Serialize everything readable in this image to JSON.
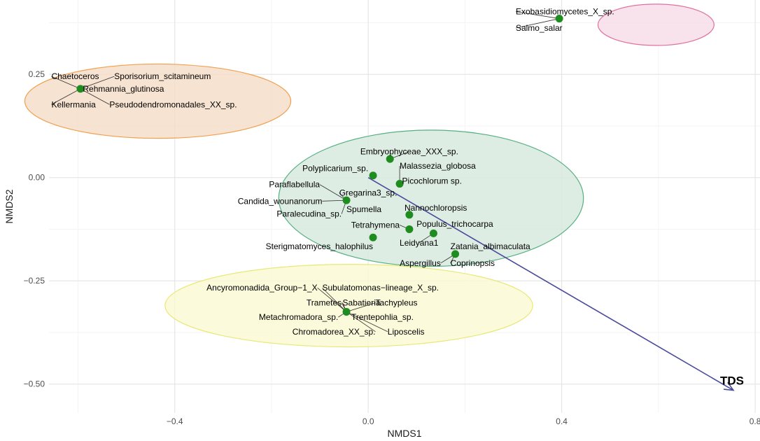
{
  "chart_data": {
    "type": "scatter",
    "title": "",
    "xlabel": "NMDS1",
    "ylabel": "NMDS2",
    "xlim": [
      -0.66,
      0.81
    ],
    "ylim": [
      -0.57,
      0.43
    ],
    "x_ticks": [
      -0.4,
      0.0,
      0.4,
      0.8
    ],
    "x_tick_labels": [
      "−0.4",
      "0.0",
      "0.4",
      "0.8"
    ],
    "y_ticks": [
      -0.5,
      -0.25,
      0.0,
      0.25
    ],
    "y_tick_labels": [
      "−0.50",
      "−0.25",
      "0.00",
      "0.25"
    ],
    "grid": true,
    "point_color": "#1e8c1e",
    "arrow_color": "#4b4b9c",
    "clusters": [
      {
        "center": [
          -0.435,
          0.185
        ],
        "rx": 0.275,
        "ry": 0.09,
        "fill": "#f5dcc6",
        "stroke": "#f0a050"
      },
      {
        "center": [
          0.595,
          0.37
        ],
        "rx": 0.12,
        "ry": 0.05,
        "fill": "#f6dce8",
        "stroke": "#e070a0"
      },
      {
        "center": [
          0.13,
          -0.05
        ],
        "rx": 0.315,
        "ry": 0.165,
        "fill": "#d6e8dc",
        "stroke": "#55b080"
      },
      {
        "center": [
          -0.04,
          -0.31
        ],
        "rx": 0.38,
        "ry": 0.1,
        "fill": "#fafad2",
        "stroke": "#e8e878"
      }
    ],
    "points": [
      {
        "x": -0.595,
        "y": 0.215,
        "labels": [
          {
            "text": "Chaetoceros",
            "lx": -0.655,
            "ly": 0.245,
            "anchor": "start"
          },
          {
            "text": "Sporisorium_scitamineum",
            "lx": -0.525,
            "ly": 0.245,
            "anchor": "start"
          },
          {
            "text": "Rehmannia_glutinosa",
            "lx": -0.59,
            "ly": 0.215,
            "anchor": "start"
          },
          {
            "text": "Kellermania",
            "lx": -0.655,
            "ly": 0.177,
            "anchor": "start"
          },
          {
            "text": "Pseudodendromonadales_XX_sp.",
            "lx": -0.535,
            "ly": 0.177,
            "anchor": "start"
          }
        ]
      },
      {
        "x": 0.395,
        "y": 0.385,
        "labels": [
          {
            "text": "Exobasidiomycetes_X_sp.",
            "lx": 0.305,
            "ly": 0.402,
            "anchor": "start"
          },
          {
            "text": "Salmo_salar",
            "lx": 0.305,
            "ly": 0.362,
            "anchor": "start"
          }
        ]
      },
      {
        "x": 0.045,
        "y": 0.045,
        "labels": [
          {
            "text": "Embryophyceae_XXX_sp.",
            "lx": 0.085,
            "ly": 0.063,
            "anchor": "middle"
          }
        ]
      },
      {
        "x": 0.01,
        "y": 0.005,
        "labels": [
          {
            "text": "Polyplicarium_sp.",
            "lx": 0.0,
            "ly": 0.022,
            "anchor": "end"
          }
        ]
      },
      {
        "x": 0.065,
        "y": -0.015,
        "labels": [
          {
            "text": "Malassezia_globosa",
            "lx": 0.065,
            "ly": 0.028,
            "anchor": "start"
          },
          {
            "text": "Picochlorum sp.",
            "lx": 0.07,
            "ly": -0.008,
            "anchor": "start"
          }
        ]
      },
      {
        "x": -0.045,
        "y": -0.055,
        "labels": [
          {
            "text": "Paraflabellula",
            "lx": -0.1,
            "ly": -0.017,
            "anchor": "end"
          },
          {
            "text": "Gregarina3_sp.",
            "lx": -0.06,
            "ly": -0.037,
            "anchor": "start"
          },
          {
            "text": "Candida_wounanorum",
            "lx": -0.095,
            "ly": -0.057,
            "anchor": "end"
          },
          {
            "text": "Spumella",
            "lx": -0.045,
            "ly": -0.077,
            "anchor": "start"
          },
          {
            "text": "Paralecudina_sp.",
            "lx": -0.055,
            "ly": -0.088,
            "anchor": "end"
          }
        ]
      },
      {
        "x": 0.085,
        "y": -0.09,
        "labels": [
          {
            "text": "Nannochloropsis",
            "lx": 0.075,
            "ly": -0.073,
            "anchor": "start"
          }
        ]
      },
      {
        "x": 0.085,
        "y": -0.125,
        "labels": [
          {
            "text": "Tetrahymena",
            "lx": 0.065,
            "ly": -0.115,
            "anchor": "end"
          },
          {
            "text": "Populus_trichocarpa",
            "lx": 0.1,
            "ly": -0.112,
            "anchor": "start"
          }
        ]
      },
      {
        "x": 0.135,
        "y": -0.135,
        "labels": [
          {
            "text": "Leidyana1",
            "lx": 0.105,
            "ly": -0.158,
            "anchor": "middle"
          }
        ]
      },
      {
        "x": 0.01,
        "y": -0.145,
        "labels": [
          {
            "text": "Sterigmatomyces_halophilus",
            "lx": 0.01,
            "ly": -0.167,
            "anchor": "end"
          }
        ]
      },
      {
        "x": 0.18,
        "y": -0.185,
        "labels": [
          {
            "text": "Zatania_albimaculata",
            "lx": 0.17,
            "ly": -0.167,
            "anchor": "start"
          },
          {
            "text": "Aspergillus",
            "lx": 0.15,
            "ly": -0.207,
            "anchor": "end"
          },
          {
            "text": "Coprinopsis",
            "lx": 0.17,
            "ly": -0.207,
            "anchor": "start"
          }
        ]
      },
      {
        "x": -0.045,
        "y": -0.325,
        "labels": [
          {
            "text": "Ancyromonadida_Group−1_X",
            "lx": -0.105,
            "ly": -0.267,
            "anchor": "end"
          },
          {
            "text": "Subulatomonas−lineage_X_sp.",
            "lx": -0.095,
            "ly": -0.267,
            "anchor": "start"
          },
          {
            "text": "Trametes",
            "lx": -0.055,
            "ly": -0.303,
            "anchor": "end"
          },
          {
            "text": "Sabatieria",
            "lx": -0.053,
            "ly": -0.303,
            "anchor": "start"
          },
          {
            "text": "Tachypleus",
            "lx": 0.015,
            "ly": -0.303,
            "anchor": "start"
          },
          {
            "text": "Metachromadora_sp.",
            "lx": -0.062,
            "ly": -0.338,
            "anchor": "end"
          },
          {
            "text": "Trentepohlia_sp.",
            "lx": -0.035,
            "ly": -0.338,
            "anchor": "start"
          },
          {
            "text": "Chromadorea_XX_sp.",
            "lx": 0.015,
            "ly": -0.373,
            "anchor": "end"
          },
          {
            "text": "Liposcelis",
            "lx": 0.04,
            "ly": -0.373,
            "anchor": "start"
          }
        ]
      }
    ],
    "vector": {
      "label": "TDS",
      "from": [
        0.0,
        0.0
      ],
      "to": [
        0.755,
        -0.515
      ]
    }
  }
}
